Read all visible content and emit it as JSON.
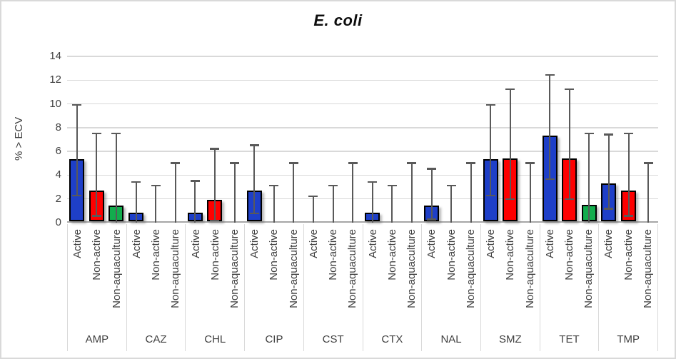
{
  "chart_data": {
    "type": "bar",
    "title": "E. coli",
    "ylabel": "% > ECV",
    "ylim": [
      0,
      14
    ],
    "yticks": [
      0,
      2,
      4,
      6,
      8,
      10,
      12,
      14
    ],
    "grid": true,
    "legend": "none",
    "categories": [
      "AMP",
      "CAZ",
      "CHL",
      "CIP",
      "CST",
      "CTX",
      "NAL",
      "SMZ",
      "TET",
      "TMP"
    ],
    "subcategories": [
      "Active",
      "Non-active",
      "Non-aquaculture"
    ],
    "series": [
      {
        "name": "Active",
        "color": "#1e3fc8",
        "values": [
          5.2,
          0.7,
          0.7,
          2.6,
          0.0,
          0.7,
          1.3,
          5.2,
          7.2,
          3.2
        ],
        "err_low": [
          2.2,
          0.0,
          0.0,
          0.7,
          0.0,
          0.0,
          0.2,
          2.2,
          3.6,
          1.1
        ],
        "err_high": [
          10.0,
          3.5,
          3.6,
          6.6,
          2.3,
          3.5,
          4.6,
          10.0,
          12.5,
          7.5
        ]
      },
      {
        "name": "Non-active",
        "color": "#fe0000",
        "values": [
          2.6,
          0.0,
          1.8,
          0.0,
          0.0,
          0.0,
          0.0,
          5.3,
          5.3,
          2.6
        ],
        "err_low": [
          0.5,
          0.0,
          0.1,
          0.0,
          0.0,
          0.0,
          0.0,
          1.9,
          1.9,
          0.5
        ],
        "err_high": [
          7.6,
          3.2,
          6.3,
          3.2,
          3.2,
          3.2,
          3.2,
          11.3,
          11.3,
          7.6
        ]
      },
      {
        "name": "Non-aquaculture",
        "color": "#12ad4d",
        "values": [
          1.3,
          0.0,
          0.0,
          0.0,
          0.0,
          0.0,
          0.0,
          0.0,
          1.4,
          0.0
        ],
        "err_low": [
          0.0,
          0.0,
          0.0,
          0.0,
          0.0,
          0.0,
          0.0,
          0.0,
          0.0,
          0.0
        ],
        "err_high": [
          7.6,
          5.1,
          5.1,
          5.1,
          5.1,
          5.1,
          5.1,
          5.1,
          7.6,
          5.1
        ]
      }
    ],
    "error_bar_color": "#595959",
    "gridline_color": "#d9d9d9",
    "axis_color": "#a6a6a6"
  }
}
